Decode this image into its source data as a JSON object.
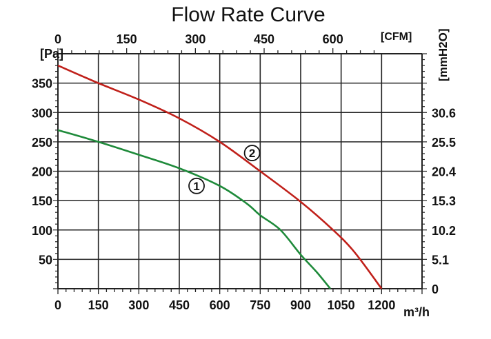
{
  "chart_data": {
    "type": "line",
    "title": "Flow Rate Curve",
    "xlabel": "m³/h",
    "ylabel": "[Pa]",
    "x_top_label": "[CFM]",
    "y_right_label": "[mmH2O]",
    "xlim": [
      0,
      1350
    ],
    "ylim": [
      0,
      400
    ],
    "grid": true,
    "x_ticks": [
      0,
      150,
      300,
      450,
      600,
      750,
      900,
      1050,
      1200
    ],
    "x_top_ticks": [
      0,
      150,
      300,
      450,
      600
    ],
    "y_ticks": [
      50,
      100,
      150,
      200,
      250,
      300,
      350
    ],
    "y_right_ticks": [
      {
        "pa": 0,
        "label": "0"
      },
      {
        "pa": 50,
        "label": "5.1"
      },
      {
        "pa": 100,
        "label": "10.2"
      },
      {
        "pa": 150,
        "label": "15.3"
      },
      {
        "pa": 200,
        "label": "20.4"
      },
      {
        "pa": 250,
        "label": "25.5"
      },
      {
        "pa": 300,
        "label": "30.6"
      }
    ],
    "series": [
      {
        "name": "1",
        "label": "①",
        "color": "#1e8a3a",
        "label_at": [
          514,
          175
        ],
        "x": [
          0,
          150,
          300,
          450,
          600,
          700,
          750,
          825,
          900,
          960,
          1010
        ],
        "y": [
          270,
          250,
          228,
          205,
          175,
          145,
          125,
          100,
          58,
          28,
          0
        ]
      },
      {
        "name": "2",
        "label": "②",
        "color": "#c0201a",
        "label_at": [
          720,
          231
        ],
        "x": [
          0,
          150,
          300,
          450,
          600,
          750,
          900,
          1020,
          1100,
          1200
        ],
        "y": [
          380,
          350,
          322,
          290,
          250,
          200,
          148,
          100,
          62,
          0
        ]
      }
    ]
  }
}
